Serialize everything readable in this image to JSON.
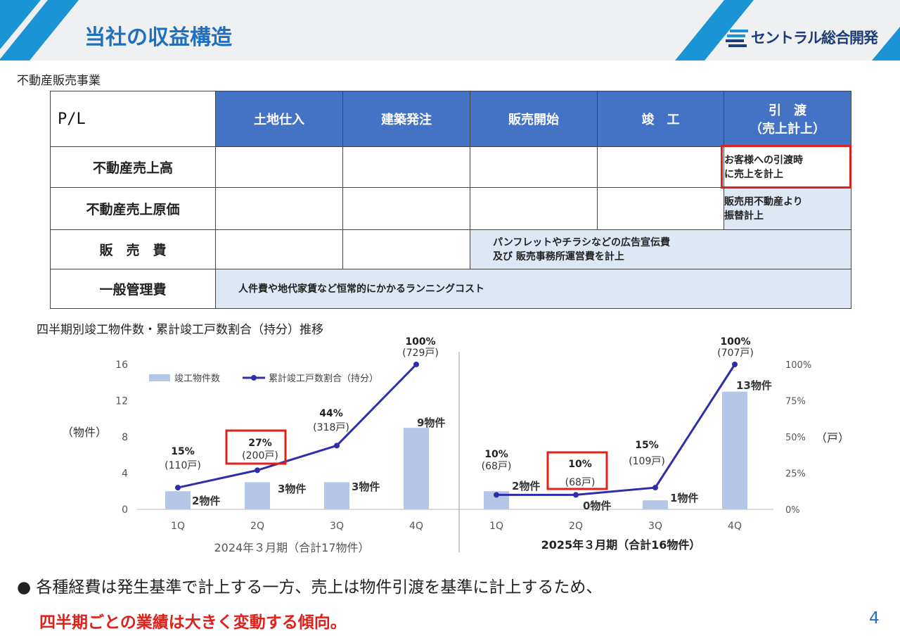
{
  "header": {
    "title": "当社の収益構造",
    "logo_text": "セントラル総合開発",
    "colors": {
      "accent": "#1f6fc0",
      "stripe": "#1a94d4",
      "table_header": "#4472c4",
      "highlight": "#e0201a",
      "bar": "#b4c7e7",
      "line": "#2e2eaa"
    }
  },
  "section_label": "不動産販売事業",
  "pl_table": {
    "corner": "P/L",
    "columns": [
      "土地仕入",
      "建築発注",
      "販売開始",
      "竣　工",
      "引　渡",
      "（売上計上）"
    ],
    "rows": [
      {
        "label": "不動産売上高",
        "note_line1": "お客様への引渡時",
        "note_line2": "に売上を計上"
      },
      {
        "label": "不動産売上原価",
        "note_line1": "販売用不動産より",
        "note_line2": "振替計上"
      },
      {
        "label": "販　売　費",
        "note_line1": "パンフレットやチラシなどの広告宣伝費",
        "note_line2": "及び 販売事務所運営費を計上"
      },
      {
        "label": "一般管理費",
        "note_line1": "人件費や地代家賃など恒常的にかかるランニングコスト"
      }
    ]
  },
  "chart_title": "四半期別竣工物件数・累計竣工戸数割合（持分）推移",
  "chart_data": {
    "type": "bar",
    "categories": [
      "1Q",
      "2Q",
      "3Q",
      "4Q",
      "1Q",
      "2Q",
      "3Q",
      "4Q"
    ],
    "groups": [
      "2024年３月期（合計17物件）",
      "2025年３月期（合計16物件）"
    ],
    "y_left_label": "（物件）",
    "y_right_label": "（戸）",
    "y_left_ticks": [
      "0",
      "4",
      "8",
      "12",
      "16"
    ],
    "y_right_ticks": [
      "0%",
      "25%",
      "50%",
      "75%",
      "100%"
    ],
    "ylim": [
      0,
      16
    ],
    "y2lim": [
      0,
      100
    ],
    "legend": [
      "竣工物件数",
      "累計竣工戸数割合（持分）"
    ],
    "series": [
      {
        "name": "竣工物件数",
        "type": "bar",
        "values": [
          2,
          3,
          3,
          9,
          2,
          0,
          1,
          13
        ],
        "labels": [
          "2物件",
          "3物件",
          "3物件",
          "9物件",
          "2物件",
          "0物件",
          "1物件",
          "13物件"
        ]
      },
      {
        "name": "累計竣工戸数割合（持分）",
        "type": "line",
        "values": [
          15,
          27,
          44,
          100,
          10,
          10,
          15,
          100
        ],
        "labels": [
          "15%",
          "27%",
          "44%",
          "100%",
          "10%",
          "10%",
          "15%",
          "100%"
        ],
        "sublabels": [
          "(110戸)",
          "(200戸)",
          "(318戸)",
          "(729戸)",
          "(68戸)",
          "(68戸)",
          "(109戸)",
          "(707戸)"
        ]
      }
    ]
  },
  "bullet_text": "● 各種経費は発生基準で計上する一方、売上は物件引渡を基準に計上するため、",
  "bullet_emphasis": "四半期ごとの業績は大きく変動する傾向。",
  "page_number": "4"
}
